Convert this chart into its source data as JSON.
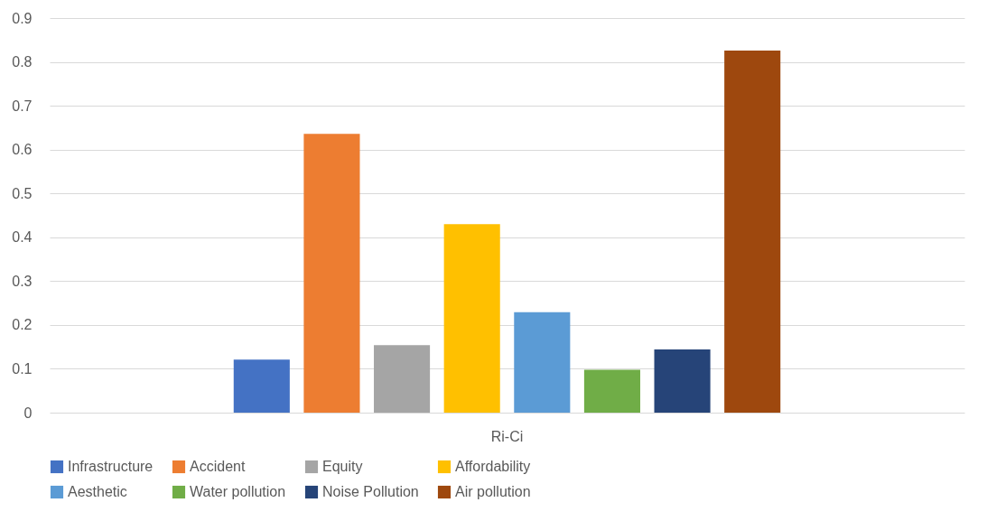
{
  "chart_data": {
    "type": "bar",
    "categories": [
      "Ri-Ci"
    ],
    "series": [
      {
        "name": "Infrastructure",
        "color": "#4472c4",
        "values": [
          0.121
        ]
      },
      {
        "name": "Accident",
        "color": "#ed7d31",
        "values": [
          0.636
        ]
      },
      {
        "name": "Equity",
        "color": "#a5a5a5",
        "values": [
          0.154
        ]
      },
      {
        "name": "Affordability",
        "color": "#ffc000",
        "values": [
          0.43
        ]
      },
      {
        "name": "Aesthetic",
        "color": "#5b9bd5",
        "values": [
          0.229
        ]
      },
      {
        "name": "Water pollution",
        "color": "#70ad47",
        "values": [
          0.098
        ]
      },
      {
        "name": "Noise Pollution",
        "color": "#264478",
        "values": [
          0.144
        ]
      },
      {
        "name": "Air pollution",
        "color": "#9e480e",
        "values": [
          0.826
        ]
      }
    ],
    "ylim": [
      0,
      0.9
    ],
    "yticks": [
      0,
      0.1,
      0.2,
      0.3,
      0.4,
      0.5,
      0.6,
      0.7,
      0.8,
      0.9
    ],
    "grid": "y",
    "legend": "bottom"
  }
}
